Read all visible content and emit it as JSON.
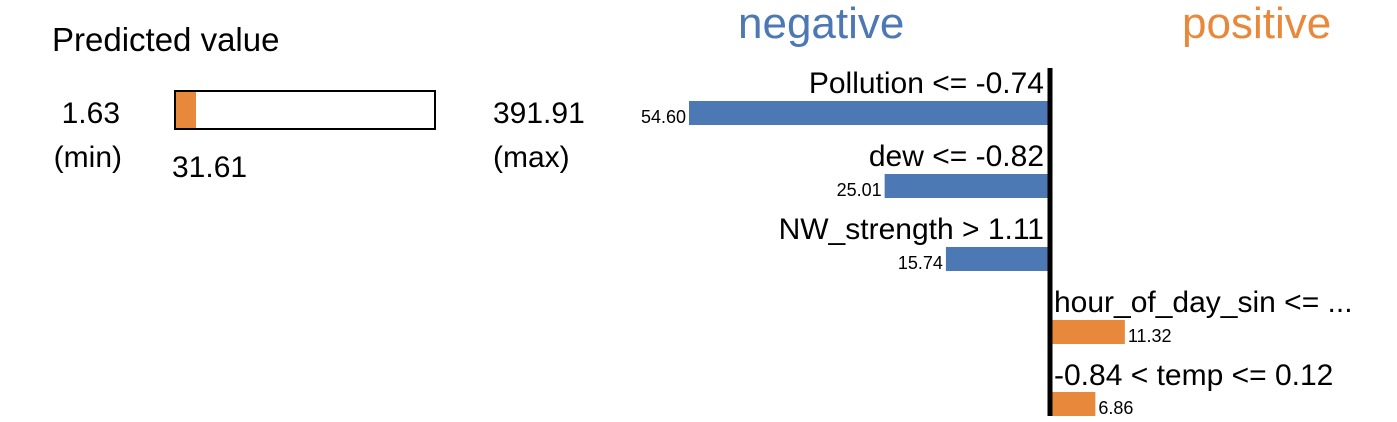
{
  "prediction": {
    "title": "Predicted value",
    "min_value": "1.63",
    "min_label": "(min)",
    "max_value": "391.91",
    "max_label": "(max)",
    "value": 31.61,
    "value_label": "31.61",
    "min": 1.63,
    "max": 391.91
  },
  "legend": {
    "negative": "negative",
    "positive": "positive"
  },
  "colors": {
    "negative": "#4c78b4",
    "positive": "#e8883a",
    "axis": "#000000"
  },
  "chart_data": {
    "type": "bar",
    "orientation": "horizontal",
    "categories": [
      "Pollution <= -0.74",
      "dew <= -0.82",
      "NW_strength > 1.11",
      "hour_of_day_sin <= ...",
      "-0.84 < temp <= 0.12"
    ],
    "values": [
      -54.6,
      -25.01,
      -15.74,
      11.32,
      6.86
    ],
    "value_labels": [
      "54.60",
      "25.01",
      "15.74",
      "11.32",
      "6.86"
    ]
  }
}
